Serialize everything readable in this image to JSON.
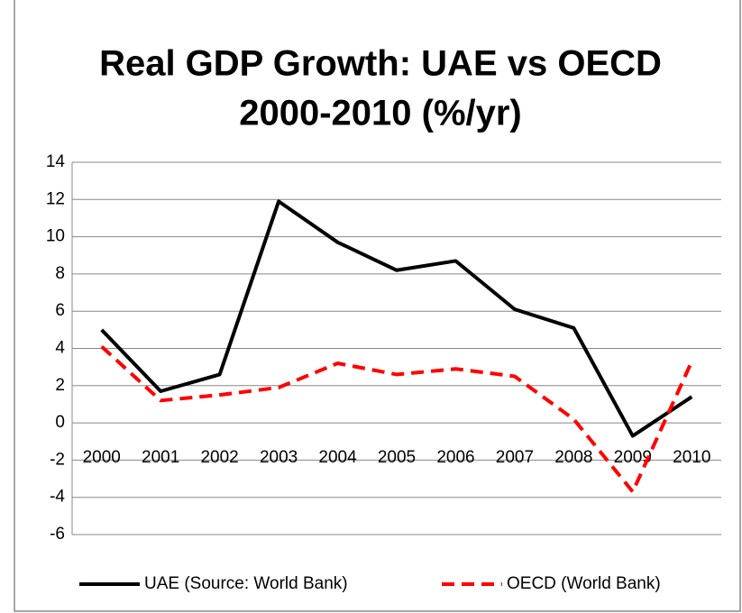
{
  "chart_data": {
    "type": "line",
    "title": [
      "Real GDP Growth: UAE vs OECD",
      "2000-2010 (%/yr)"
    ],
    "categories": [
      "2000",
      "2001",
      "2002",
      "2003",
      "2004",
      "2005",
      "2006",
      "2007",
      "2008",
      "2009",
      "2010"
    ],
    "series": [
      {
        "name": "UAE (Source: World Bank)",
        "color": "#000000",
        "dashed": false,
        "values": [
          5.0,
          1.7,
          2.6,
          11.9,
          9.7,
          8.2,
          8.7,
          6.1,
          5.1,
          -0.7,
          1.4
        ]
      },
      {
        "name": "OECD (World Bank)",
        "color": "#ff0000",
        "dashed": true,
        "values": [
          4.1,
          1.2,
          1.5,
          1.9,
          3.2,
          2.6,
          2.9,
          2.5,
          0.2,
          -3.7,
          3.3
        ]
      }
    ],
    "ylim": [
      -6,
      14
    ],
    "yticks": [
      -6,
      -4,
      -2,
      0,
      2,
      4,
      6,
      8,
      10,
      12,
      14
    ],
    "grid": true,
    "legend": "bottom"
  }
}
